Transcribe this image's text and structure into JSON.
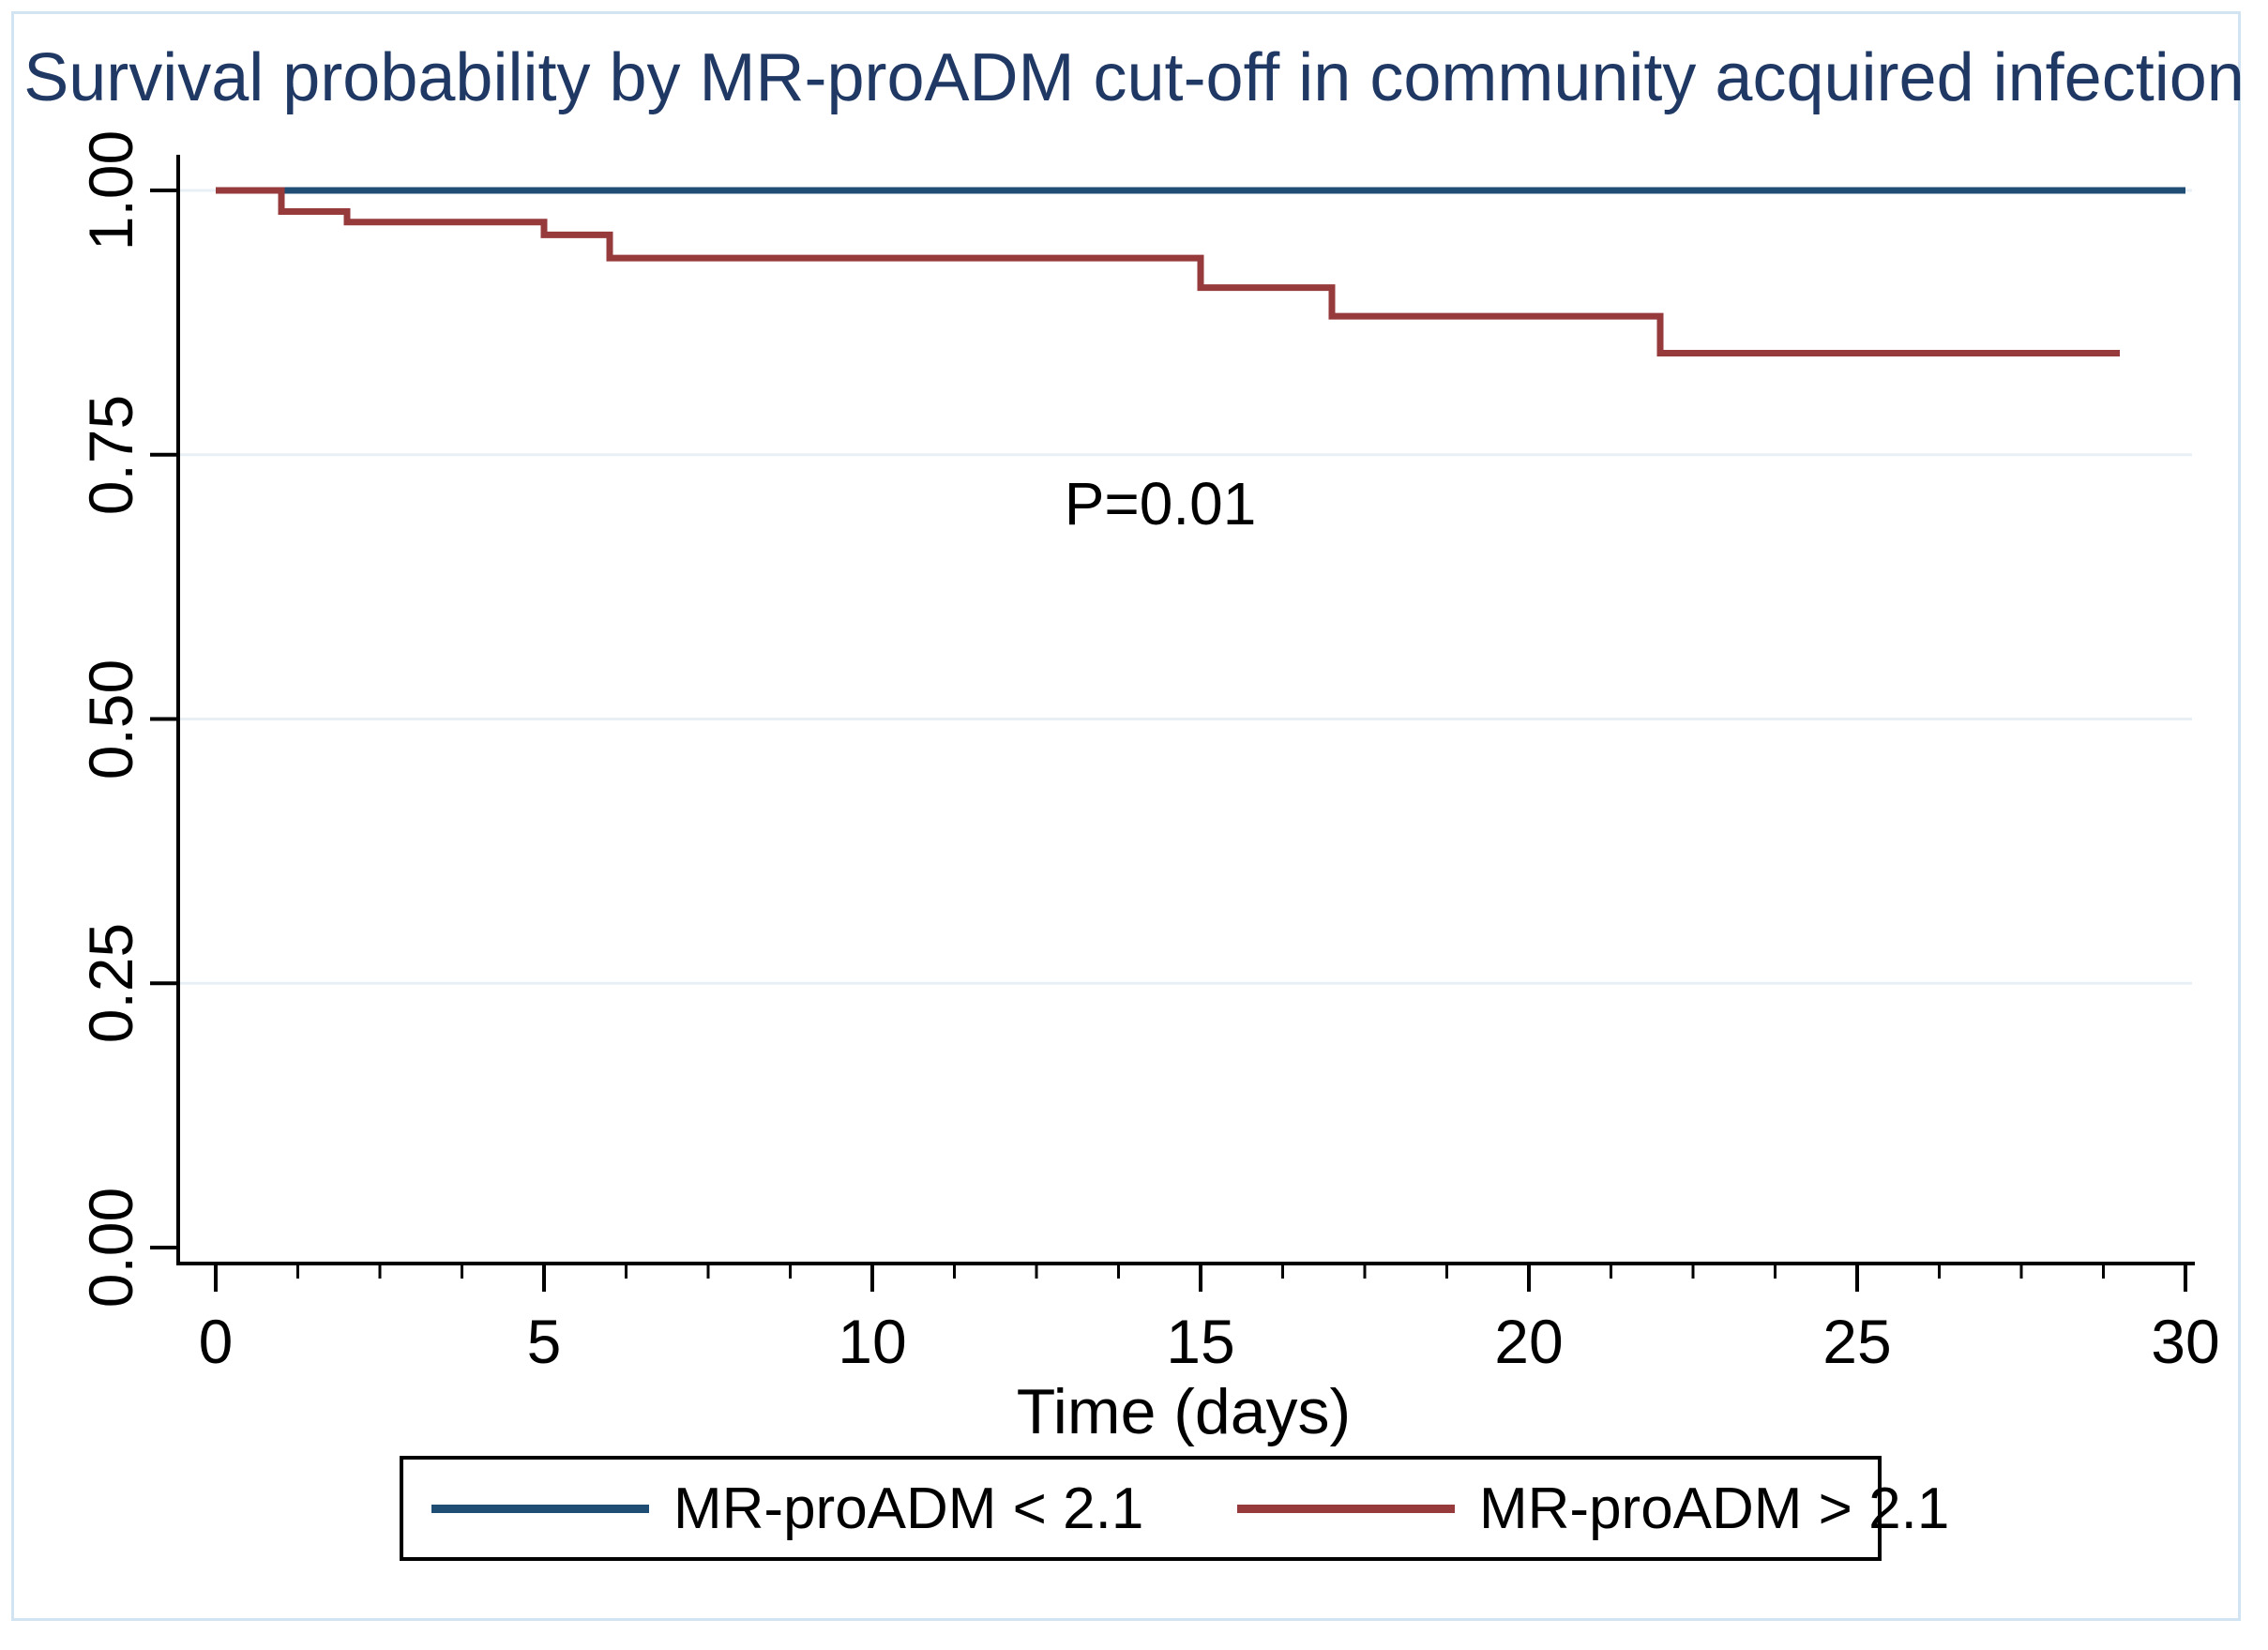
{
  "chart_data": {
    "type": "line",
    "subtype": "kaplan-meier-step",
    "title": "Survival probability by MR-proADM cut-off in community acquired infection",
    "xlabel": "Time (days)",
    "ylabel": "",
    "annotation": "P=0.01",
    "xlim": [
      0,
      30.1
    ],
    "ylim": [
      0.0,
      1.0
    ],
    "x_ticks": [
      {
        "value": 0,
        "label": "0"
      },
      {
        "value": 5,
        "label": "5"
      },
      {
        "value": 10,
        "label": "10"
      },
      {
        "value": 15,
        "label": "15"
      },
      {
        "value": 20,
        "label": "20"
      },
      {
        "value": 25,
        "label": "25"
      },
      {
        "value": 30,
        "label": "30"
      }
    ],
    "x_minor_tick_step": 1.25,
    "y_ticks": [
      {
        "value": 1.0,
        "label": "1.00"
      },
      {
        "value": 0.75,
        "label": "0.75"
      },
      {
        "value": 0.5,
        "label": "0.50"
      },
      {
        "value": 0.25,
        "label": "0.25"
      },
      {
        "value": 0.0,
        "label": "0.00"
      }
    ],
    "gridlines_at": [
      1.0,
      0.75,
      0.5,
      0.25
    ],
    "grid": true,
    "legend_position": "bottom",
    "series": [
      {
        "name": "MR-proADM < 2.1",
        "color": "#1f4d74",
        "points": [
          [
            0,
            1.0
          ]
        ],
        "end_x": 30
      },
      {
        "name": "MR-proADM > 2.1",
        "color": "#973a3c",
        "points": [
          [
            0,
            1.0
          ],
          [
            1,
            0.98
          ],
          [
            2,
            0.97
          ],
          [
            5,
            0.958
          ],
          [
            6,
            0.936
          ],
          [
            15,
            0.908
          ],
          [
            17,
            0.881
          ],
          [
            22,
            0.846
          ]
        ],
        "end_x": 29
      }
    ]
  },
  "colors": {
    "title_text": "#1f3864",
    "navy_series": "#1f4d74",
    "maroon_series": "#973a3c",
    "gridline": "#e9f0f5",
    "axis": "#000000",
    "figure_border": "#d2e4f1"
  }
}
